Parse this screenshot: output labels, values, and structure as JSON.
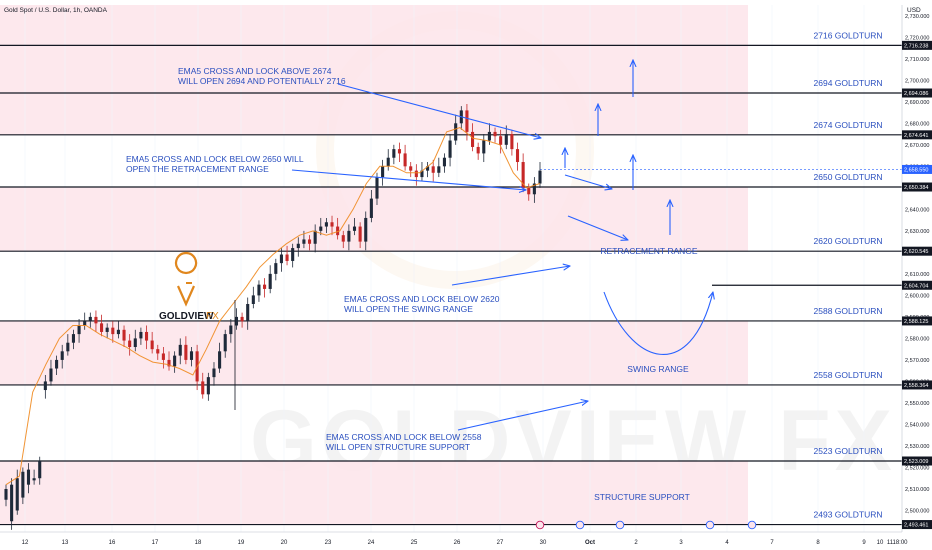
{
  "header": {
    "symbol_title": "Gold Spot / U.S. Dollar, 1h, OANDA",
    "currency": "USD"
  },
  "logo": {
    "brand_main": "GOLDVIEW",
    "brand_sub": "FX",
    "watermark": "GOLDVIEW FX"
  },
  "colors": {
    "zone_fill": "#fde4ea",
    "level_line": "#131722",
    "annotation_blue": "#2962ff",
    "label_blue": "#2a4fbf",
    "candle_up": "#1f2a3a",
    "candle_down": "#c62828",
    "ema": "#ef8a1f",
    "price_tag": "#2962ff",
    "logo_orange": "#e0871e"
  },
  "chart_data": {
    "type": "candlestick",
    "title": "Gold Spot / U.S. Dollar, 1h, OANDA",
    "ylim": [
      2490,
      2735
    ],
    "y_ticks": [
      2500,
      2510,
      2520,
      2530,
      2540,
      2550,
      2560,
      2570,
      2580,
      2590,
      2600,
      2610,
      2620,
      2630,
      2640,
      2650,
      2660,
      2670,
      2680,
      2690,
      2700,
      2710,
      2720,
      2730
    ],
    "x_ticks": [
      "12",
      "13",
      "16",
      "17",
      "18",
      "19",
      "20",
      "23",
      "24",
      "25",
      "26",
      "27",
      "30",
      "Oct",
      "2",
      "3",
      "4",
      "7",
      "8",
      "9",
      "10",
      "11",
      "18:00"
    ],
    "levels": [
      {
        "label": "2716 GOLDTURN",
        "value": 2716.238,
        "tag": "2,716.238"
      },
      {
        "label": "2694 GOLDTURN",
        "value": 2694.086,
        "tag": "2,694.086"
      },
      {
        "label": "2674 GOLDTURN",
        "value": 2674.641,
        "tag": "2,674.641"
      },
      {
        "label": "2650 GOLDTURN",
        "value": 2650.384,
        "tag": "2,650.384"
      },
      {
        "label": "2620 GOLDTURN",
        "value": 2620.545,
        "tag": "2,620.545"
      },
      {
        "label": "2588 GOLDTURN",
        "value": 2588.125,
        "tag": "2,588.125"
      },
      {
        "label": "2558 GOLDTURN",
        "value": 2558.364,
        "tag": "2,558.364"
      },
      {
        "label": "2523 GOLDTURN",
        "value": 2523.009,
        "tag": "2,523.009"
      },
      {
        "label": "2493 GOLDTURN",
        "value": 2493.461,
        "tag": "2,493.461"
      }
    ],
    "swing_target": {
      "value": 2604.704,
      "tag": "2,604.704"
    },
    "current_price": {
      "value": 2658.55,
      "tag": "2,658.550"
    },
    "zones": [
      {
        "from": 2694.086,
        "to": 2735
      },
      {
        "from": 2674.641,
        "to": 2694.086
      },
      {
        "from": 2620.545,
        "to": 2650.384
      },
      {
        "from": 2558.364,
        "to": 2588.125
      },
      {
        "from": 2493.461,
        "to": 2523.009
      }
    ],
    "annotations": [
      {
        "lines": [
          "EMA5 CROSS AND LOCK ABOVE 2674",
          "WILL OPEN 2694 AND POTENTIALLY 2716"
        ]
      },
      {
        "lines": [
          "EMA5 CROSS AND LOCK BELOW 2650 WILL",
          "OPEN THE RETRACEMENT RANGE"
        ]
      },
      {
        "lines": [
          "EMA5 CROSS AND LOCK BELOW 2620",
          "WILL OPEN THE SWING RANGE"
        ]
      },
      {
        "lines": [
          "EMA5 CROSS AND LOCK BELOW 2558",
          "WILL OPEN STRUCTURE SUPPORT"
        ]
      }
    ],
    "range_labels": [
      "RETRACEMENT RANGE",
      "SWING RANGE",
      "STRUCTURE SUPPORT"
    ],
    "price_path": [
      [
        2505,
        2510
      ],
      [
        2495,
        2512
      ],
      [
        2500,
        2515
      ],
      [
        2506,
        2518
      ],
      [
        2512,
        2519
      ],
      [
        2514,
        2515
      ],
      [
        2515,
        2523
      ],
      [
        2556,
        2560
      ],
      [
        2560,
        2566
      ],
      [
        2566,
        2570
      ],
      [
        2570,
        2574
      ],
      [
        2574,
        2578
      ],
      [
        2578,
        2582
      ],
      [
        2582,
        2586
      ],
      [
        2586,
        2588
      ],
      [
        2588,
        2590
      ],
      [
        2590,
        2587
      ],
      [
        2587,
        2583
      ],
      [
        2583,
        2585
      ],
      [
        2585,
        2582
      ],
      [
        2582,
        2584
      ],
      [
        2584,
        2579
      ],
      [
        2579,
        2576
      ],
      [
        2576,
        2580
      ],
      [
        2580,
        2583
      ],
      [
        2583,
        2579
      ],
      [
        2579,
        2575
      ],
      [
        2575,
        2573
      ],
      [
        2573,
        2570
      ],
      [
        2570,
        2567
      ],
      [
        2567,
        2572
      ],
      [
        2572,
        2577
      ],
      [
        2577,
        2570
      ],
      [
        2570,
        2574
      ],
      [
        2574,
        2560
      ],
      [
        2560,
        2554
      ],
      [
        2554,
        2562
      ],
      [
        2562,
        2566
      ],
      [
        2566,
        2574
      ],
      [
        2574,
        2582
      ],
      [
        2582,
        2586
      ],
      [
        2586,
        2590
      ],
      [
        2590,
        2588
      ],
      [
        2588,
        2596
      ],
      [
        2596,
        2600
      ],
      [
        2600,
        2605
      ],
      [
        2605,
        2603
      ],
      [
        2603,
        2610
      ],
      [
        2610,
        2615
      ],
      [
        2615,
        2619
      ],
      [
        2619,
        2616
      ],
      [
        2616,
        2622
      ],
      [
        2622,
        2624
      ],
      [
        2624,
        2626
      ],
      [
        2626,
        2624
      ],
      [
        2624,
        2630
      ],
      [
        2630,
        2632
      ],
      [
        2632,
        2634
      ],
      [
        2634,
        2632
      ],
      [
        2632,
        2628
      ],
      [
        2628,
        2625
      ],
      [
        2625,
        2630
      ],
      [
        2630,
        2632
      ],
      [
        2632,
        2625
      ],
      [
        2625,
        2636
      ],
      [
        2636,
        2645
      ],
      [
        2645,
        2655
      ],
      [
        2655,
        2660
      ],
      [
        2660,
        2664
      ],
      [
        2664,
        2668
      ],
      [
        2668,
        2666
      ],
      [
        2666,
        2660
      ],
      [
        2660,
        2658
      ],
      [
        2658,
        2655
      ],
      [
        2655,
        2658
      ],
      [
        2658,
        2660
      ],
      [
        2660,
        2657
      ],
      [
        2657,
        2660
      ],
      [
        2660,
        2664
      ],
      [
        2664,
        2672
      ],
      [
        2672,
        2680
      ],
      [
        2680,
        2686
      ],
      [
        2686,
        2676
      ],
      [
        2676,
        2669
      ],
      [
        2669,
        2666
      ],
      [
        2666,
        2672
      ],
      [
        2672,
        2676
      ],
      [
        2676,
        2674
      ],
      [
        2674,
        2670
      ],
      [
        2670,
        2675
      ],
      [
        2675,
        2668
      ],
      [
        2668,
        2662
      ],
      [
        2662,
        2650
      ],
      [
        2650,
        2647
      ],
      [
        2647,
        2652
      ],
      [
        2652,
        2658
      ]
    ],
    "ema_path": [
      2512,
      2516,
      2555,
      2568,
      2580,
      2586,
      2586,
      2582,
      2579,
      2576,
      2572,
      2569,
      2568,
      2566,
      2563,
      2575,
      2588,
      2596,
      2604,
      2613,
      2619,
      2624,
      2628,
      2630,
      2628,
      2630,
      2640,
      2652,
      2660,
      2660,
      2657,
      2657,
      2662,
      2676,
      2678,
      2673,
      2672,
      2670,
      2657,
      2650,
      2652
    ]
  }
}
